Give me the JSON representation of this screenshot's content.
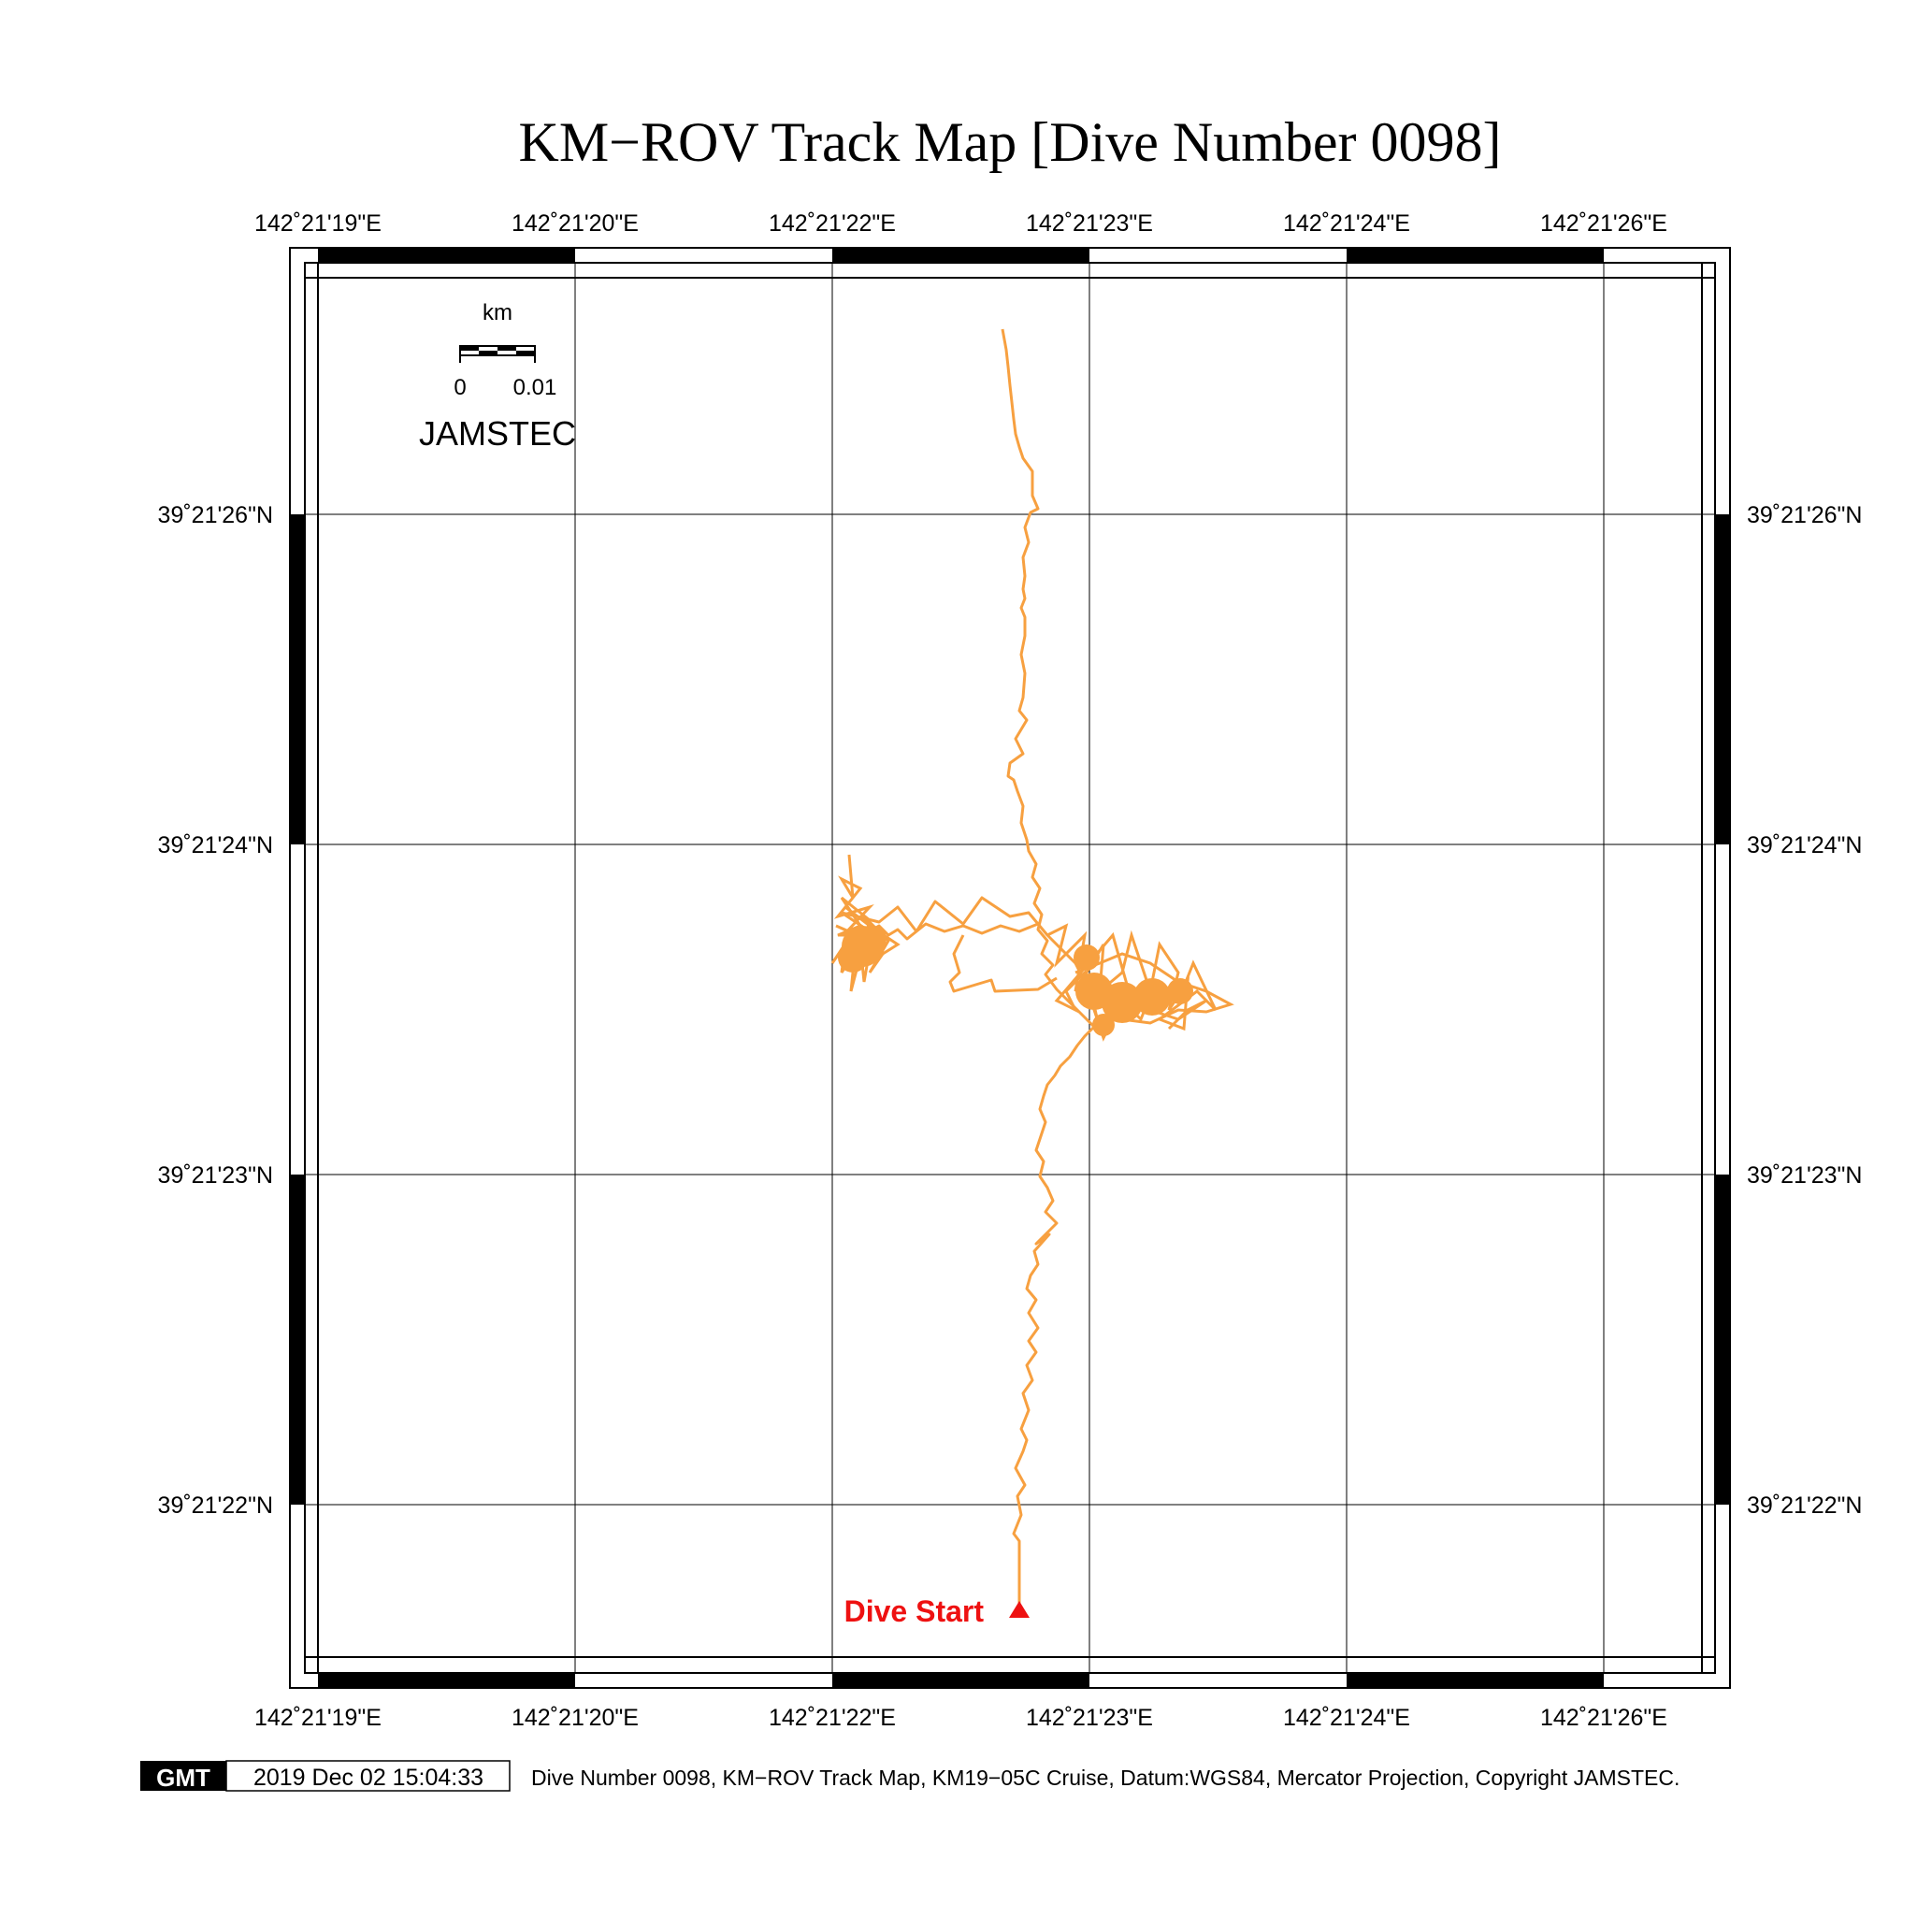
{
  "title": "KM−ROV Track Map [Dive Number 0098]",
  "lon_ticks": [
    "142˚21'19\"E",
    "142˚21'20\"E",
    "142˚21'22\"E",
    "142˚21'23\"E",
    "142˚21'24\"E",
    "142˚21'26\"E"
  ],
  "lat_ticks": [
    "39˚21'26\"N",
    "39˚21'24\"N",
    "39˚21'23\"N",
    "39˚21'22\"N"
  ],
  "scale_bar": {
    "unit": "km",
    "start_label": "0",
    "end_label": "0.01"
  },
  "organization": "JAMSTEC",
  "start_marker_label": "Dive Start",
  "colors": {
    "track": "#f7a040",
    "start_marker": "#ee1111",
    "frame": "#000000",
    "grid": "#000000"
  },
  "footer": {
    "logo_text": "GMT",
    "timestamp": "2019 Dec 02 15:04:33",
    "caption": "Dive Number 0098, KM−ROV Track Map, KM19−05C Cruise, Datum:WGS84, Mercator Projection, Copyright JAMSTEC."
  }
}
